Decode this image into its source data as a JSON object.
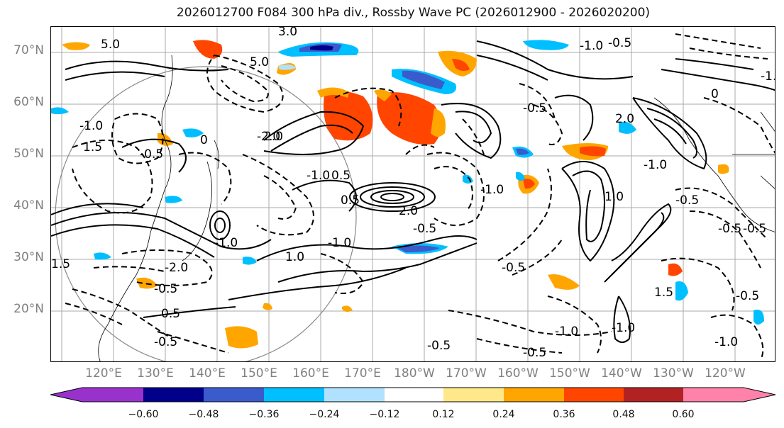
{
  "title": "2026012700 F084 300 hPa div., Rossby Wave PC (2026012900 - 2026020200)",
  "lat_labels": [
    "70°N",
    "60°N",
    "50°N",
    "40°N",
    "30°N",
    "20°N"
  ],
  "lon_labels": [
    "120°E",
    "130°E",
    "140°E",
    "150°E",
    "160°E",
    "170°E",
    "180°W",
    "170°W",
    "160°W",
    "150°W",
    "140°W",
    "130°W",
    "120°W"
  ],
  "contour_labels": [
    "3.0",
    "5.0",
    "5.0",
    "-1.0",
    "-0.5",
    "0",
    "2.0",
    "-0.5",
    "0",
    "-1.0",
    "1.5",
    "-0.5",
    "0.5",
    "-1.0",
    "-2.0",
    "0.5",
    "2.0",
    "-1.0",
    "-0.5",
    "-2.0",
    "-0.5",
    "-1.0",
    "-0.5",
    "0.5",
    "1.5",
    "-0.5",
    "-1.0",
    "-0.5",
    "-0.5",
    "-0.5",
    "1.0",
    "-1.0",
    "-1.0",
    "-1.5",
    "-0.5",
    "-0.5",
    "1.0",
    "-1.0",
    "2.0",
    "-0.5",
    "-1.0",
    "1.5"
  ],
  "colorbar": {
    "ticks": [
      "−0.60",
      "−0.48",
      "−0.36",
      "−0.24",
      "−0.12",
      "0.12",
      "0.24",
      "0.36",
      "0.48",
      "0.60"
    ],
    "colors": [
      "#9932cc",
      "#00008b",
      "#3a5bcc",
      "#00bfff",
      "#b0e2ff",
      "#ffffff",
      "#ffe88a",
      "#ffa500",
      "#ff4500",
      "#b22222",
      "#ff82ab"
    ]
  }
}
